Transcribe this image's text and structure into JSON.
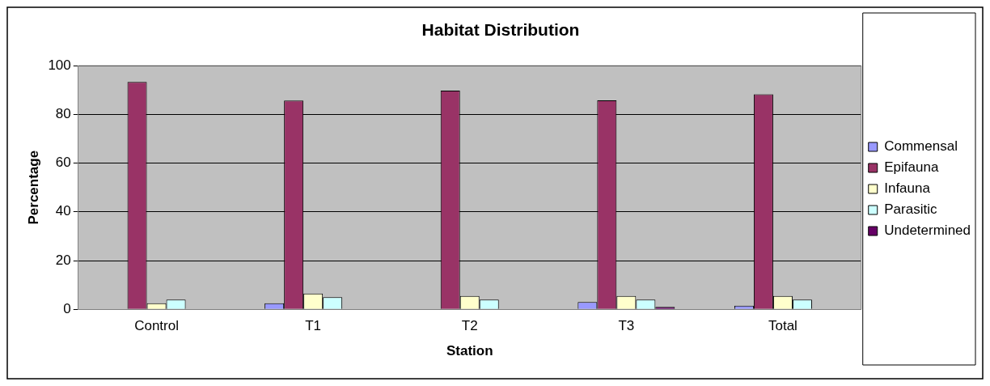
{
  "chart_data": {
    "type": "bar",
    "title": "Habitat Distribution",
    "xlabel": "Station",
    "ylabel": "Percentage",
    "categories": [
      "Control",
      "T1",
      "T2",
      "T3",
      "Total"
    ],
    "series": [
      {
        "name": "Commensal",
        "color": "#9999ff",
        "values": [
          0,
          2.5,
          0,
          3,
          1.5
        ]
      },
      {
        "name": "Epifauna",
        "color": "#993366",
        "values": [
          93.3,
          85.7,
          89.8,
          85.8,
          88.3
        ]
      },
      {
        "name": "Infauna",
        "color": "#ffffcc",
        "values": [
          2.5,
          6.5,
          5.5,
          5.5,
          5.5
        ]
      },
      {
        "name": "Parasitic",
        "color": "#ccffff",
        "values": [
          4,
          5,
          4,
          4,
          4
        ]
      },
      {
        "name": "Undetermined",
        "color": "#660066",
        "values": [
          0,
          0,
          0,
          1,
          null
        ]
      }
    ],
    "ylim": [
      0,
      100
    ],
    "yticks": [
      0,
      20,
      40,
      60,
      80,
      100
    ],
    "grid": "y",
    "legend": "right"
  }
}
